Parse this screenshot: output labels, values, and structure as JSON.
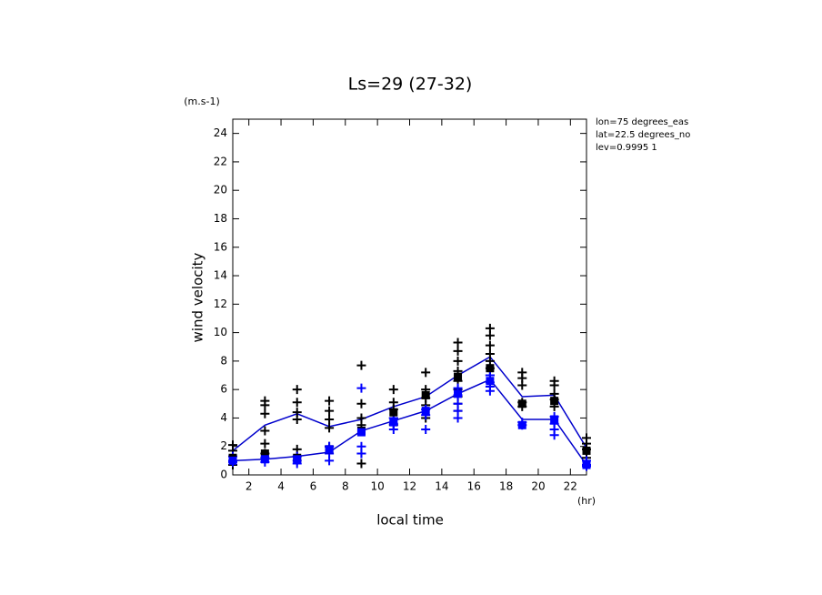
{
  "chart_data": {
    "type": "line",
    "title": "Ls=29 (27-32)",
    "y_unit": "(m.s-1)",
    "x_unit": "(hr)",
    "xlabel": "local time",
    "ylabel": "wind velocity",
    "annotations": [
      "lon=75 degrees_eas",
      "lat=22.5 degrees_no",
      "lev=0.9995 1"
    ],
    "xlim": [
      1,
      23
    ],
    "ylim": [
      0,
      25
    ],
    "xticks": [
      2,
      4,
      6,
      8,
      10,
      12,
      14,
      16,
      18,
      20,
      22
    ],
    "yticks": [
      0,
      2,
      4,
      6,
      8,
      10,
      12,
      14,
      16,
      18,
      20,
      22,
      24
    ],
    "series": [
      {
        "color": "#0000cc",
        "marker": "line",
        "x": [
          1,
          3,
          5,
          7,
          9,
          11,
          13,
          15,
          17,
          19,
          21,
          23
        ],
        "values": [
          1.7,
          3.5,
          4.3,
          3.4,
          3.9,
          4.8,
          5.5,
          7.0,
          8.3,
          5.5,
          5.6,
          1.9
        ]
      },
      {
        "color": "#0000cc",
        "marker": "line",
        "x": [
          1,
          3,
          5,
          7,
          9,
          11,
          13,
          15,
          17,
          19,
          21,
          23
        ],
        "values": [
          1.0,
          1.1,
          1.3,
          1.6,
          3.1,
          3.8,
          4.5,
          5.7,
          6.7,
          3.9,
          3.9,
          0.7
        ]
      },
      {
        "color": "#000000",
        "marker": "plus",
        "x": [
          1,
          1,
          1,
          3,
          3,
          3,
          3,
          3,
          3,
          5,
          5,
          5,
          5,
          5,
          7,
          7,
          7,
          7,
          7,
          9,
          9,
          9,
          9,
          9,
          9,
          11,
          11,
          11,
          11,
          11,
          13,
          13,
          13,
          13,
          13,
          15,
          15,
          15,
          15,
          15,
          15,
          15,
          15,
          15,
          17,
          17,
          17,
          17,
          17,
          17,
          17,
          19,
          19,
          19,
          19,
          19,
          21,
          21,
          21,
          21,
          21,
          23,
          23,
          23,
          23
        ],
        "values": [
          2.1,
          1.7,
          0.7,
          5.2,
          4.9,
          4.3,
          3.1,
          2.2,
          1.5,
          6.0,
          5.1,
          4.4,
          3.9,
          1.8,
          5.2,
          4.5,
          3.9,
          3.3,
          2.0,
          7.7,
          5.0,
          4.0,
          3.5,
          1.5,
          0.8,
          6.0,
          5.1,
          4.6,
          4.0,
          3.5,
          7.2,
          6.0,
          5.4,
          4.9,
          4.0,
          9.3,
          8.7,
          8.0,
          7.3,
          6.6,
          6.0,
          5.5,
          5.0,
          4.5,
          10.3,
          9.8,
          9.1,
          8.5,
          8.0,
          7.5,
          7.0,
          7.2,
          6.8,
          6.3,
          5.1,
          4.8,
          6.6,
          6.3,
          5.7,
          5.3,
          4.8,
          2.6,
          2.2,
          1.8,
          1.2
        ]
      },
      {
        "color": "#0000ff",
        "marker": "plus",
        "x": [
          1,
          1,
          1,
          3,
          3,
          5,
          5,
          5,
          7,
          7,
          7,
          9,
          9,
          9,
          11,
          11,
          11,
          13,
          13,
          13,
          15,
          15,
          15,
          15,
          15,
          17,
          17,
          17,
          17,
          19,
          19,
          21,
          21,
          21,
          21,
          23,
          23,
          23
        ],
        "values": [
          1.3,
          1.0,
          0.9,
          1.2,
          0.9,
          1.3,
          1.0,
          0.8,
          2.0,
          1.5,
          1.0,
          6.1,
          2.0,
          1.5,
          4.0,
          3.6,
          3.2,
          4.6,
          4.2,
          3.2,
          6.1,
          5.6,
          5.0,
          4.5,
          4.0,
          7.0,
          6.5,
          6.2,
          5.9,
          3.7,
          3.5,
          4.1,
          3.6,
          3.2,
          2.8,
          1.0,
          0.7,
          0.6
        ]
      },
      {
        "color": "#000000",
        "marker": "square",
        "x": [
          1,
          3,
          5,
          7,
          9,
          11,
          13,
          15,
          17,
          19,
          21,
          23
        ],
        "values": [
          1.2,
          1.5,
          1.2,
          1.8,
          3.1,
          4.4,
          5.6,
          6.9,
          7.5,
          5.0,
          5.2,
          1.7
        ]
      },
      {
        "color": "#0000ff",
        "marker": "square",
        "x": [
          1,
          3,
          5,
          7,
          9,
          11,
          13,
          15,
          17,
          19,
          21,
          23
        ],
        "values": [
          1.0,
          1.1,
          1.1,
          1.8,
          3.0,
          3.7,
          4.5,
          5.7,
          6.6,
          3.5,
          3.9,
          0.7
        ]
      }
    ]
  }
}
